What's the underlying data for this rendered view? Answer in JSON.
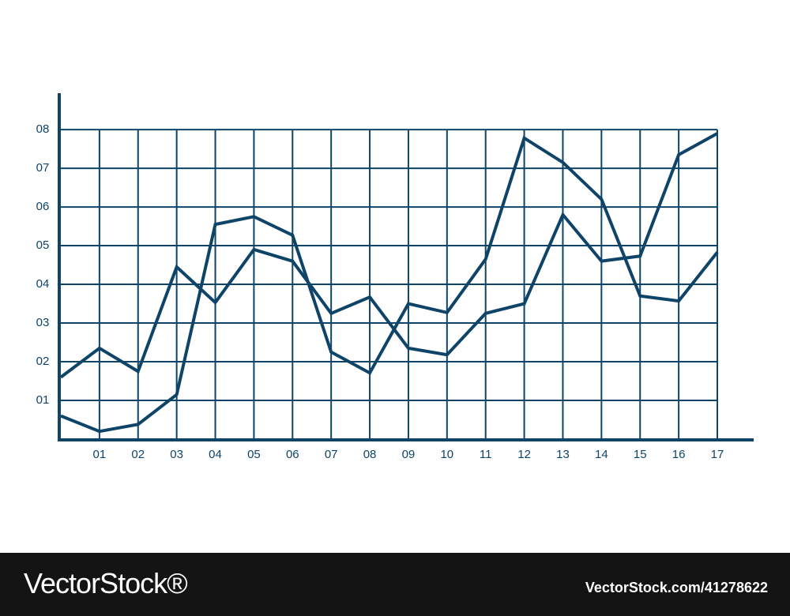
{
  "chart_data": {
    "type": "line",
    "x": [
      0,
      1,
      2,
      3,
      4,
      5,
      6,
      7,
      8,
      9,
      10,
      11,
      12,
      13,
      14,
      15,
      16,
      17
    ],
    "series": [
      {
        "color": "#0e4468",
        "values": [
          1.6,
          2.35,
          1.75,
          4.45,
          3.53,
          4.9,
          4.6,
          3.25,
          3.67,
          2.35,
          2.18,
          3.25,
          3.5,
          5.8,
          4.6,
          4.73,
          7.35,
          7.9
        ]
      },
      {
        "color": "#0e4468",
        "values": [
          0.6,
          0.2,
          0.38,
          1.15,
          5.55,
          5.75,
          5.27,
          2.25,
          1.71,
          3.5,
          3.27,
          4.65,
          7.78,
          7.15,
          6.2,
          3.7,
          3.57,
          4.83
        ]
      }
    ],
    "xlim": [
      0,
      17.9
    ],
    "ylim": [
      0,
      8.9
    ],
    "xticks": [
      {
        "value": 1,
        "label": "01"
      },
      {
        "value": 2,
        "label": "02"
      },
      {
        "value": 3,
        "label": "03"
      },
      {
        "value": 4,
        "label": "04"
      },
      {
        "value": 5,
        "label": "05"
      },
      {
        "value": 6,
        "label": "06"
      },
      {
        "value": 7,
        "label": "07"
      },
      {
        "value": 8,
        "label": "08"
      },
      {
        "value": 9,
        "label": "09"
      },
      10,
      11,
      12,
      13,
      14,
      15,
      16,
      17
    ],
    "yticks": [
      {
        "value": 1,
        "label": "01"
      },
      {
        "value": 2,
        "label": "02"
      },
      {
        "value": 3,
        "label": "03"
      },
      {
        "value": 4,
        "label": "04"
      },
      {
        "value": 5,
        "label": "05"
      },
      {
        "value": 6,
        "label": "06"
      },
      {
        "value": 7,
        "label": "07"
      },
      {
        "value": 8,
        "label": "08"
      }
    ],
    "grid": true,
    "axis_color": "#0e4468"
  },
  "footer": {
    "brand": "VectorStock®",
    "id": "VectorStock.com/41278622"
  }
}
